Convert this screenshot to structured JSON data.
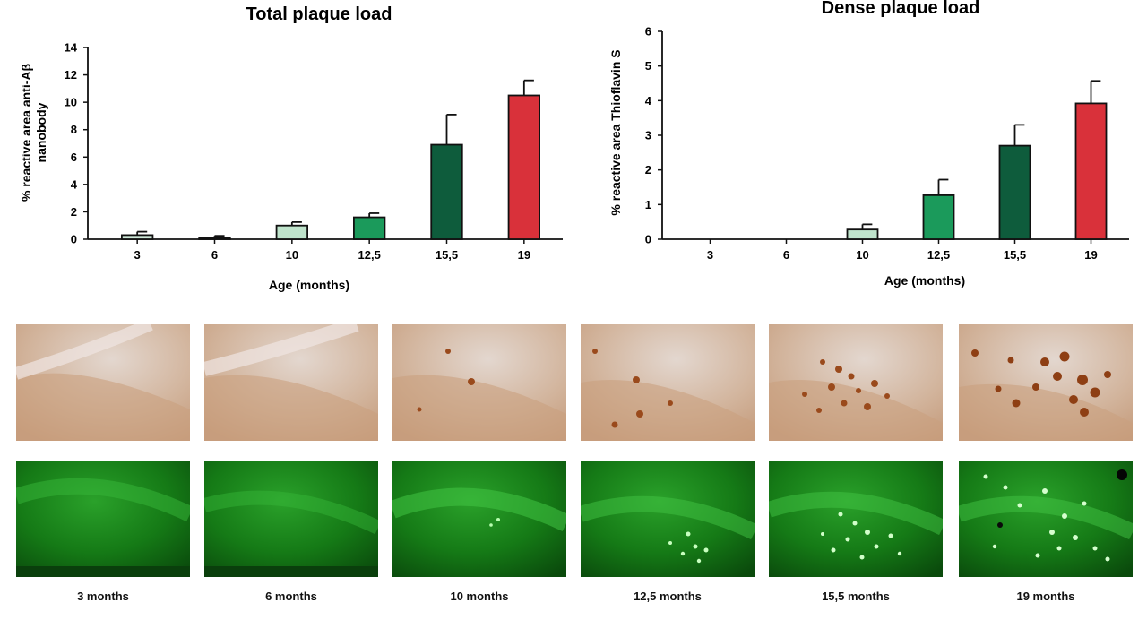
{
  "chart_data": [
    {
      "type": "bar",
      "title": "Total plaque load",
      "xlabel": "Age (months)",
      "ylabel_lines": [
        "% reactive area anti-Aβ",
        "nanobody"
      ],
      "ylim": [
        0,
        14
      ],
      "yticks": [
        "0",
        "2",
        "4",
        "6",
        "8",
        "10",
        "12",
        "14"
      ],
      "categories": [
        "3",
        "6",
        "10",
        "12,5",
        "15,5",
        "19"
      ],
      "values": [
        0.3,
        0.05,
        1.0,
        1.6,
        6.9,
        10.5
      ],
      "errors": [
        0.25,
        0.2,
        0.25,
        0.3,
        2.2,
        1.1
      ],
      "colors": [
        "#cfe9d9",
        "#e9f5ee",
        "#bfe4cc",
        "#1b9a5b",
        "#0e5c3c",
        "#d9313a"
      ]
    },
    {
      "type": "bar",
      "title": "Dense plaque load",
      "xlabel": "Age (months)",
      "ylabel_lines": [
        "% reactive area Thioflavin S"
      ],
      "ylim": [
        0,
        6
      ],
      "yticks": [
        "0",
        "1",
        "2",
        "3",
        "4",
        "5",
        "6"
      ],
      "categories": [
        "3",
        "6",
        "10",
        "12,5",
        "15,5",
        "19"
      ],
      "values": [
        0.0,
        0.0,
        0.28,
        1.27,
        2.7,
        3.92
      ],
      "errors": [
        0,
        0,
        0.15,
        0.45,
        0.6,
        0.65
      ],
      "colors": [
        "#cfe9d9",
        "#e9f5ee",
        "#bfe4cc",
        "#1b9a5b",
        "#0e5c3c",
        "#d9313a"
      ]
    }
  ],
  "captions": [
    "3 months",
    "6 months",
    "10 months",
    "12,5 months",
    "15,5 months",
    "19 months"
  ]
}
